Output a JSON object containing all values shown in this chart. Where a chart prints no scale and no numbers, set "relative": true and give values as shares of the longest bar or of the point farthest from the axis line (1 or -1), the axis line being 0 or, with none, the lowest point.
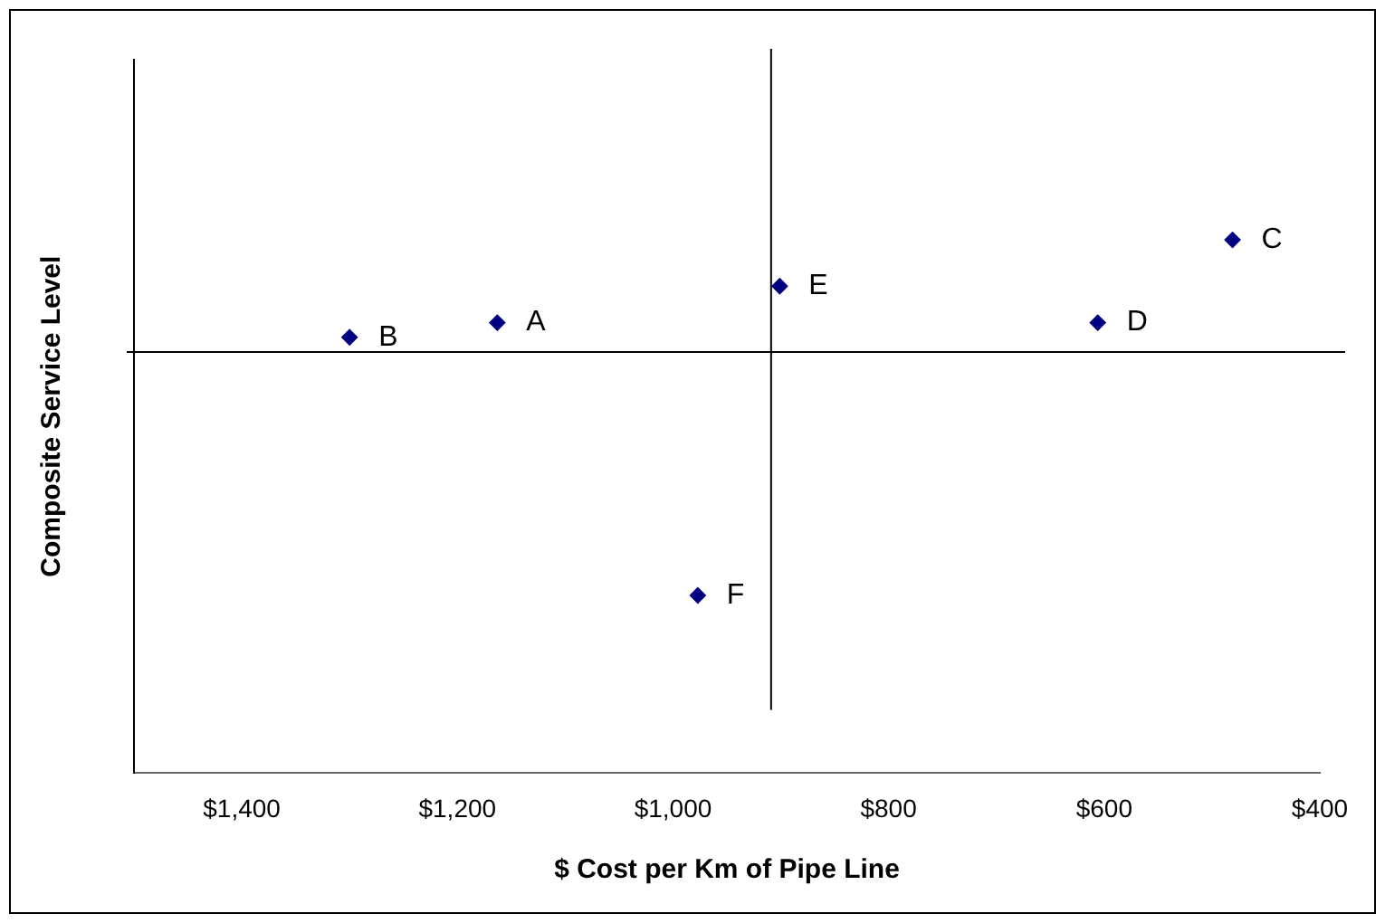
{
  "chart_data": {
    "type": "scatter",
    "xlabel": "$ Cost per Km of Pipe Line",
    "ylabel": "Composite Service Level",
    "relative": true,
    "series": [
      {
        "color": "#000080",
        "x": [
          1163,
          1300,
          481,
          606,
          901,
          977
        ],
        "values": [
          0.12,
          0.06,
          0.46,
          0.12,
          0.27,
          -1
        ]
      }
    ],
    "xlim": [
      1500,
      400
    ],
    "xticks": [
      {
        "value": 1400,
        "label": "$1,400"
      },
      {
        "value": 1200,
        "label": "$1,200"
      },
      {
        "value": 1000,
        "label": "$1,000"
      },
      {
        "value": 800,
        "label": "$800"
      },
      {
        "value": 600,
        "label": "$600"
      },
      {
        "value": 400,
        "label": "$400"
      }
    ],
    "ref_lines": [
      {
        "axis": "x",
        "value": 909
      }
    ],
    "annotations": [
      {
        "text": "A",
        "x": 1163,
        "y": 0.12
      },
      {
        "text": "B",
        "x": 1300,
        "y": 0.06
      },
      {
        "text": "C",
        "x": 481,
        "y": 0.46
      },
      {
        "text": "D",
        "x": 606,
        "y": 0.12
      },
      {
        "text": "E",
        "x": 901,
        "y": 0.27
      },
      {
        "text": "F",
        "x": 977,
        "y": -1
      }
    ],
    "grid": false,
    "legend": false,
    "marker": "diamond"
  }
}
